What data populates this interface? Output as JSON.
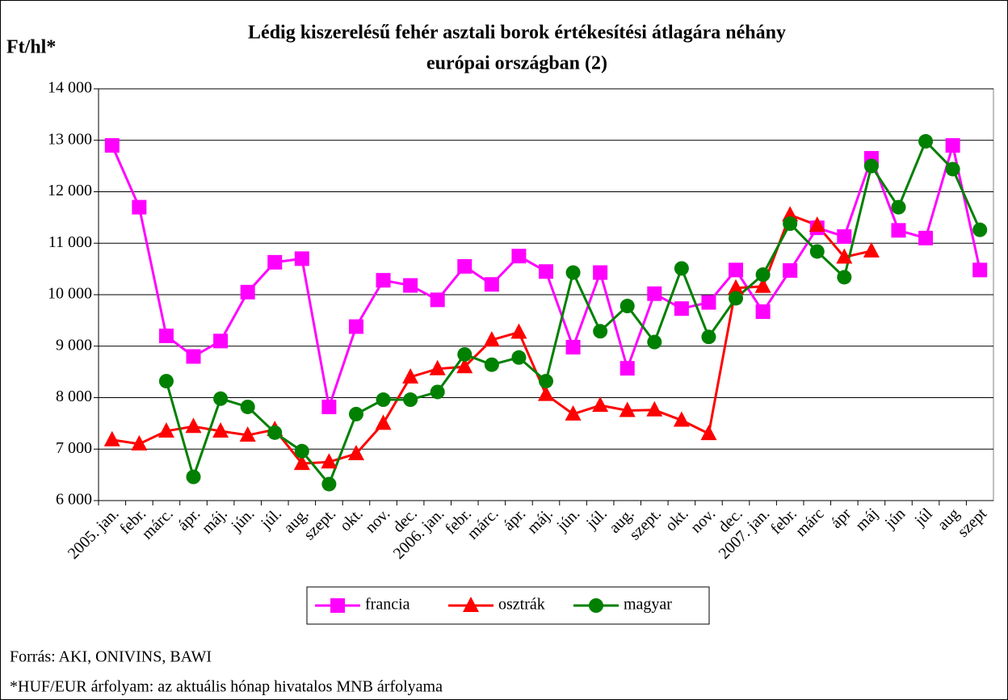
{
  "chart_data": {
    "type": "line",
    "title": [
      "Lédig kiszerelésű fehér asztali borok értékesítési átlagára néhány",
      "európai országban (2)"
    ],
    "ylabel": "Ft/hl*",
    "categories": [
      "2005. jan.",
      "febr.",
      "márc.",
      "ápr.",
      "máj.",
      "jún.",
      "júl.",
      "aug.",
      "szept.",
      "okt.",
      "nov.",
      "dec.",
      "2006. jan.",
      "febr.",
      "márc.",
      "ápr.",
      "máj.",
      "jún.",
      "júl.",
      "aug.",
      "szept.",
      "okt.",
      "nov.",
      "dec.",
      "2007. jan.",
      "febr.",
      "márc",
      "ápr",
      "máj",
      "jún",
      "júl",
      "aug",
      "szept"
    ],
    "series": [
      {
        "name": "francia",
        "color": "#ff00ff",
        "marker": "square",
        "values": [
          12900,
          11700,
          9200,
          8800,
          9100,
          10050,
          10630,
          10700,
          7820,
          9380,
          10280,
          10180,
          9900,
          10550,
          10200,
          10750,
          10450,
          8980,
          10430,
          8570,
          10020,
          9730,
          9850,
          10480,
          9670,
          10470,
          11300,
          11130,
          12650,
          11250,
          11100,
          12900,
          10480
        ]
      },
      {
        "name": "osztrák",
        "color": "#ff0000",
        "marker": "triangle",
        "values": [
          7180,
          7100,
          7350,
          7440,
          7350,
          7270,
          7380,
          6720,
          6750,
          6910,
          7500,
          8400,
          8560,
          8600,
          9120,
          9270,
          8060,
          7680,
          7850,
          7750,
          7760,
          7560,
          7300,
          10130,
          10160,
          11550,
          11350,
          10730,
          10850,
          null,
          null,
          null,
          null
        ]
      },
      {
        "name": "magyar",
        "color": "#008000",
        "marker": "circle",
        "values": [
          null,
          null,
          8320,
          6460,
          7980,
          7820,
          7320,
          6960,
          6320,
          7680,
          7960,
          7960,
          8110,
          8840,
          8640,
          8780,
          8320,
          10430,
          9290,
          9780,
          9080,
          10510,
          9180,
          9930,
          10390,
          11380,
          10840,
          10340,
          12500,
          11700,
          12980,
          12440,
          11260
        ]
      }
    ],
    "ylim": [
      6000,
      14000
    ],
    "yticks": [
      {
        "value": 6000,
        "label": "6 000"
      },
      {
        "value": 7000,
        "label": "7 000"
      },
      {
        "value": 8000,
        "label": "8 000"
      },
      {
        "value": 9000,
        "label": "9 000"
      },
      {
        "value": 10000,
        "label": "10 000"
      },
      {
        "value": 11000,
        "label": "11 000"
      },
      {
        "value": 12000,
        "label": "12 000"
      },
      {
        "value": 13000,
        "label": "13 000"
      },
      {
        "value": 14000,
        "label": "14 000"
      }
    ],
    "grid": true,
    "legend": "bottom",
    "notes": [
      "Forrás: AKI, ONIVINS, BAWI",
      "*HUF/EUR árfolyam: az aktuális hónap hivatalos MNB árfolyama"
    ]
  }
}
